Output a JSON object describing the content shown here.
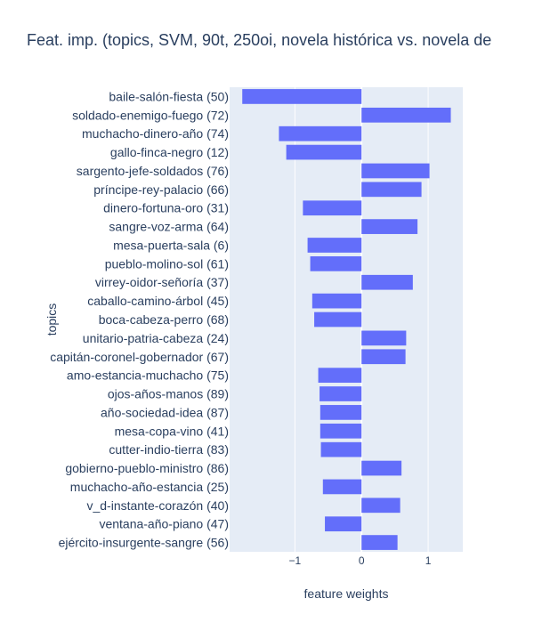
{
  "chart_data": {
    "type": "bar",
    "orientation": "horizontal",
    "title": "Feat. imp. (topics, SVM, 90t, 250oi, novela histórica vs. novela de",
    "xlabel": "feature weights",
    "ylabel": "topics",
    "xlim": [
      -1.98,
      1.52
    ],
    "xticks": [
      -1,
      0,
      1
    ],
    "xtick_labels": [
      "−1",
      "0",
      "1"
    ],
    "grid": true,
    "bar_color": "#636efa",
    "plot_bg": "#e5ecf6",
    "categories": [
      "baile-salón-fiesta (50)",
      "soldado-enemigo-fuego (72)",
      "muchacho-dinero-año (74)",
      "gallo-finca-negro (12)",
      "sargento-jefe-soldados (76)",
      "príncipe-rey-palacio (66)",
      "dinero-fortuna-oro (31)",
      "sangre-voz-arma (64)",
      "mesa-puerta-sala (6)",
      "pueblo-molino-sol (61)",
      "virrey-oidor-señoría (37)",
      "caballo-camino-árbol (45)",
      "boca-cabeza-perro (68)",
      "unitario-patria-cabeza (24)",
      "capitán-coronel-gobernador (67)",
      "amo-estancia-muchacho (75)",
      "ojos-años-manos (89)",
      "año-sociedad-idea (87)",
      "mesa-copa-vino (41)",
      "cutter-indio-tierra (83)",
      "gobierno-pueblo-ministro (86)",
      "muchacho-año-estancia (25)",
      "v_d-instante-corazón (40)",
      "ventana-año-piano (47)",
      "ejército-insurgente-sangre (56)"
    ],
    "values": [
      -1.79,
      1.34,
      -1.24,
      -1.13,
      1.02,
      0.9,
      -0.88,
      0.84,
      -0.81,
      -0.77,
      0.77,
      -0.74,
      -0.71,
      0.67,
      0.66,
      -0.65,
      -0.63,
      -0.62,
      -0.62,
      -0.61,
      0.6,
      -0.58,
      0.58,
      -0.55,
      0.54
    ]
  }
}
